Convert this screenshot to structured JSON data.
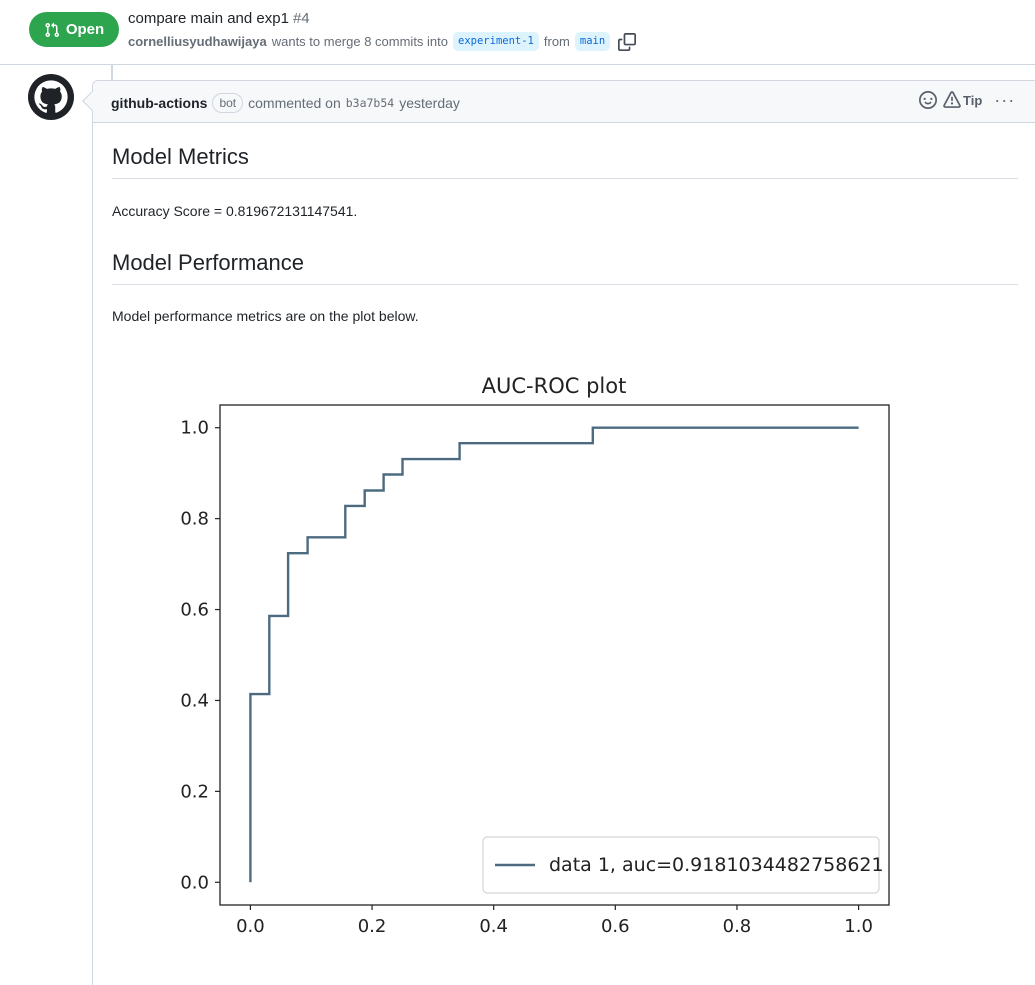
{
  "pr": {
    "state": "Open",
    "title": "compare main and exp1",
    "number": "#4",
    "author": "cornelliusyudhawijaya",
    "merge_text": "wants to merge 8 commits into",
    "base_branch": "experiment-1",
    "from_text": "from",
    "head_branch": "main"
  },
  "comment": {
    "author": "github-actions",
    "badge": "bot",
    "action_text": "commented on",
    "commit": "b3a7b54",
    "time": "yesterday",
    "tip_label": "Tip"
  },
  "body": {
    "heading_metrics": "Model Metrics",
    "accuracy_text": "Accuracy Score = 0.819672131147541.",
    "heading_performance": "Model Performance",
    "performance_text": "Model performance metrics are on the plot below."
  },
  "chart_data": {
    "type": "line",
    "title": "AUC-ROC plot",
    "xlabel": "",
    "ylabel": "",
    "xlim": [
      -0.05,
      1.05
    ],
    "ylim": [
      -0.05,
      1.05
    ],
    "xticks": [
      "0.0",
      "0.2",
      "0.4",
      "0.6",
      "0.8",
      "1.0"
    ],
    "yticks": [
      "0.0",
      "0.2",
      "0.4",
      "0.6",
      "0.8",
      "1.0"
    ],
    "grid": false,
    "legend_position": "lower-right",
    "series": [
      {
        "name": "data 1, auc=0.9181034482758621",
        "color": "#4c6b80",
        "x": [
          0.0,
          0.0,
          0.0,
          0.031,
          0.031,
          0.062,
          0.062,
          0.094,
          0.094,
          0.156,
          0.156,
          0.188,
          0.188,
          0.219,
          0.219,
          0.25,
          0.25,
          0.344,
          0.344,
          0.563,
          0.563,
          1.0
        ],
        "y": [
          0.0,
          0.414,
          0.414,
          0.414,
          0.586,
          0.586,
          0.724,
          0.724,
          0.759,
          0.759,
          0.828,
          0.828,
          0.862,
          0.862,
          0.897,
          0.897,
          0.931,
          0.931,
          0.966,
          0.966,
          1.0,
          1.0
        ]
      }
    ]
  }
}
